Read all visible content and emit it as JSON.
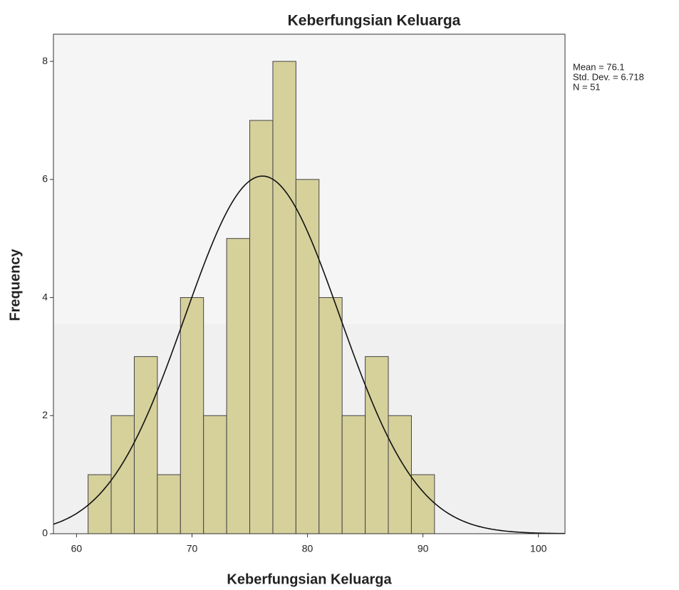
{
  "chart_data": {
    "type": "histogram",
    "title": "Keberfungsian Keluarga",
    "x_label": "Keberfungsian Keluarga",
    "y_label": "Frequency",
    "bins": [
      61,
      63,
      65,
      67,
      69,
      71,
      73,
      75,
      77,
      79,
      81,
      83,
      85,
      87,
      89,
      91
    ],
    "values": [
      1,
      2,
      3,
      1,
      4,
      2,
      5,
      7,
      8,
      6,
      4,
      2,
      3,
      2,
      1
    ],
    "color": "#d6d09b",
    "xlim": [
      58,
      102.3
    ],
    "xticks": [
      60,
      70,
      80,
      90,
      100
    ],
    "ylim": [
      0,
      8.46
    ],
    "yticks": [
      0,
      2,
      4,
      6,
      8
    ],
    "normal_curve": {
      "mean": 76.1,
      "sd": 6.718,
      "n": 51
    },
    "stats_labels": [
      "Mean = 76.1",
      "Std. Dev. = 6.718",
      "N = 51"
    ]
  }
}
